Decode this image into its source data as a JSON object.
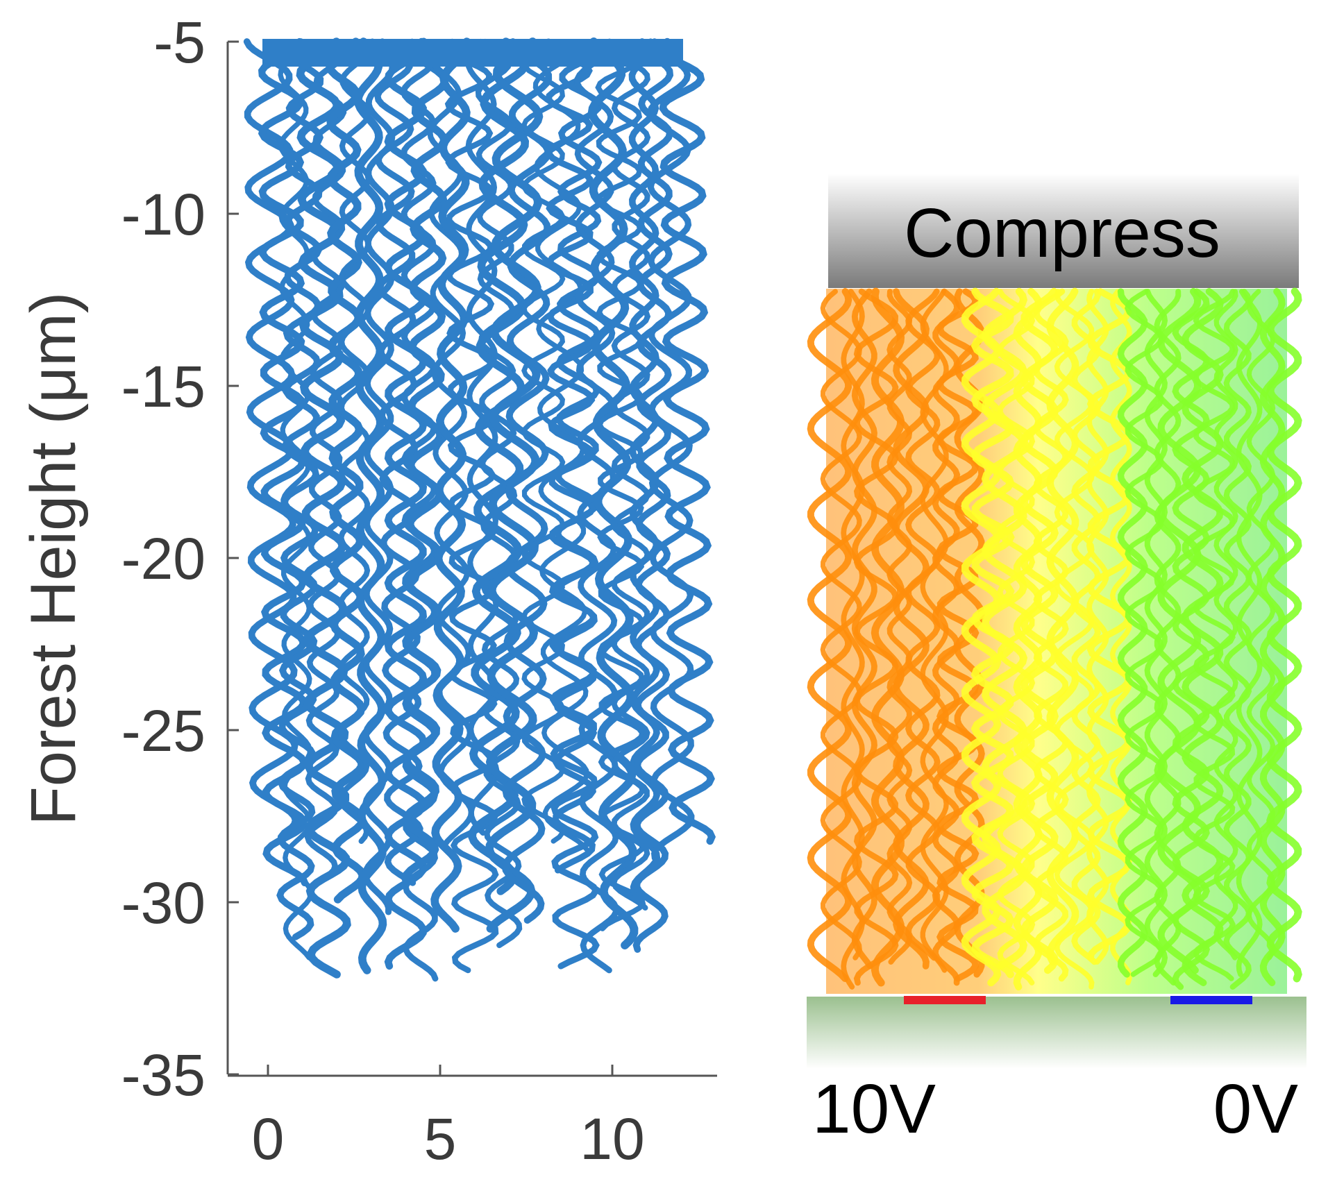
{
  "chart_data": [
    {
      "type": "line",
      "title": "",
      "ylabel": "Forest Height (μm)",
      "xlabel": "",
      "ylim": [
        -35,
        -5
      ],
      "xlim": [
        -1.2,
        13
      ],
      "xticks": [
        0,
        5,
        10
      ],
      "yticks": [
        -5,
        -10,
        -15,
        -20,
        -25,
        -30,
        -35
      ],
      "ytick_labels": [
        "-5",
        "-10",
        "-15",
        "-20",
        "-25",
        "-30",
        "-35"
      ],
      "xtick_labels": [
        "0",
        "5",
        "10"
      ],
      "series_color": "#2f7fc8",
      "strand_count": 34,
      "strand_x_range": [
        0,
        12
      ],
      "strand_top": -5,
      "strand_bottom_range": [
        -28,
        -32.5
      ],
      "grid": false
    },
    {
      "type": "line",
      "title": "",
      "compress_label": "Compress",
      "electrode_left_label": "10V",
      "electrode_right_label": "0V",
      "electrode_left_color": "#e8202a",
      "electrode_right_color": "#1a1ae6",
      "gradient_colors": [
        "#ff8a00",
        "#ffff20",
        "#80ff20",
        "#3ee43e"
      ],
      "plate_color_top": "#ffffff",
      "plate_color_bottom": "#7a7a7a",
      "substrate_color": "#9bc08f"
    }
  ]
}
